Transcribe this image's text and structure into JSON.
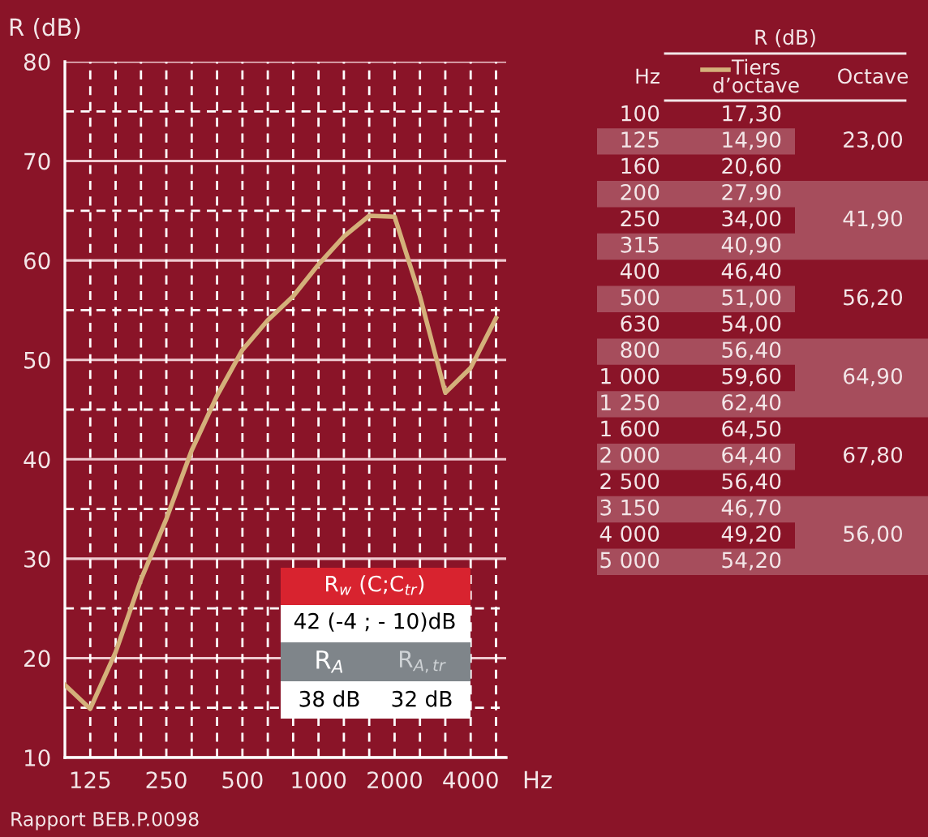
{
  "chart_data": {
    "type": "line",
    "ylabel": "R (dB)",
    "xlabel": "Hz",
    "categories": [
      null,
      "125",
      null,
      null,
      "250",
      null,
      null,
      "500",
      null,
      null,
      "1000",
      null,
      null,
      "2000",
      null,
      null,
      "4000",
      null
    ],
    "series": [
      {
        "name": "Tiers d’octave",
        "color": "#d4b07a",
        "values": [
          17.3,
          14.9,
          20.6,
          27.9,
          34.0,
          40.9,
          46.4,
          51.0,
          54.0,
          56.4,
          59.6,
          62.4,
          64.5,
          64.4,
          56.4,
          46.7,
          49.2,
          54.2
        ]
      }
    ],
    "ylim": [
      10,
      80
    ],
    "yticks": [
      10,
      20,
      30,
      40,
      50,
      60,
      70,
      80
    ],
    "grid": true,
    "marker": "none",
    "line_style": "solid",
    "legend": "top right",
    "annotations": [
      "R (dB)",
      "Hz",
      "Octave",
      "100",
      "125",
      "160",
      "200",
      "250",
      "315",
      "400",
      "500",
      "630",
      "800",
      "1 000",
      "1 250",
      "1 600",
      "2 000",
      "2 500",
      "3 150",
      "4 000",
      "5 000",
      "17,30",
      "14,90",
      "20,60",
      "27,90",
      "34,00",
      "40,90",
      "46,40",
      "51,00",
      "54,00",
      "56,40",
      "59,60",
      "62,40",
      "64,50",
      "64,40",
      "56,40",
      "46,70",
      "49,20",
      "54,20",
      "23,00",
      "41,90",
      "56,20",
      "64,90",
      "67,80",
      "56,00",
      "R$_{w}$ (C;C$_{tr}$)",
      "42 (-4 ; - 10)dB",
      "R$_{A}$",
      "R$_{A,tr}$",
      "38 dB",
      "32 dB",
      "Rapport BEB.P.0098"
    ]
  }
}
